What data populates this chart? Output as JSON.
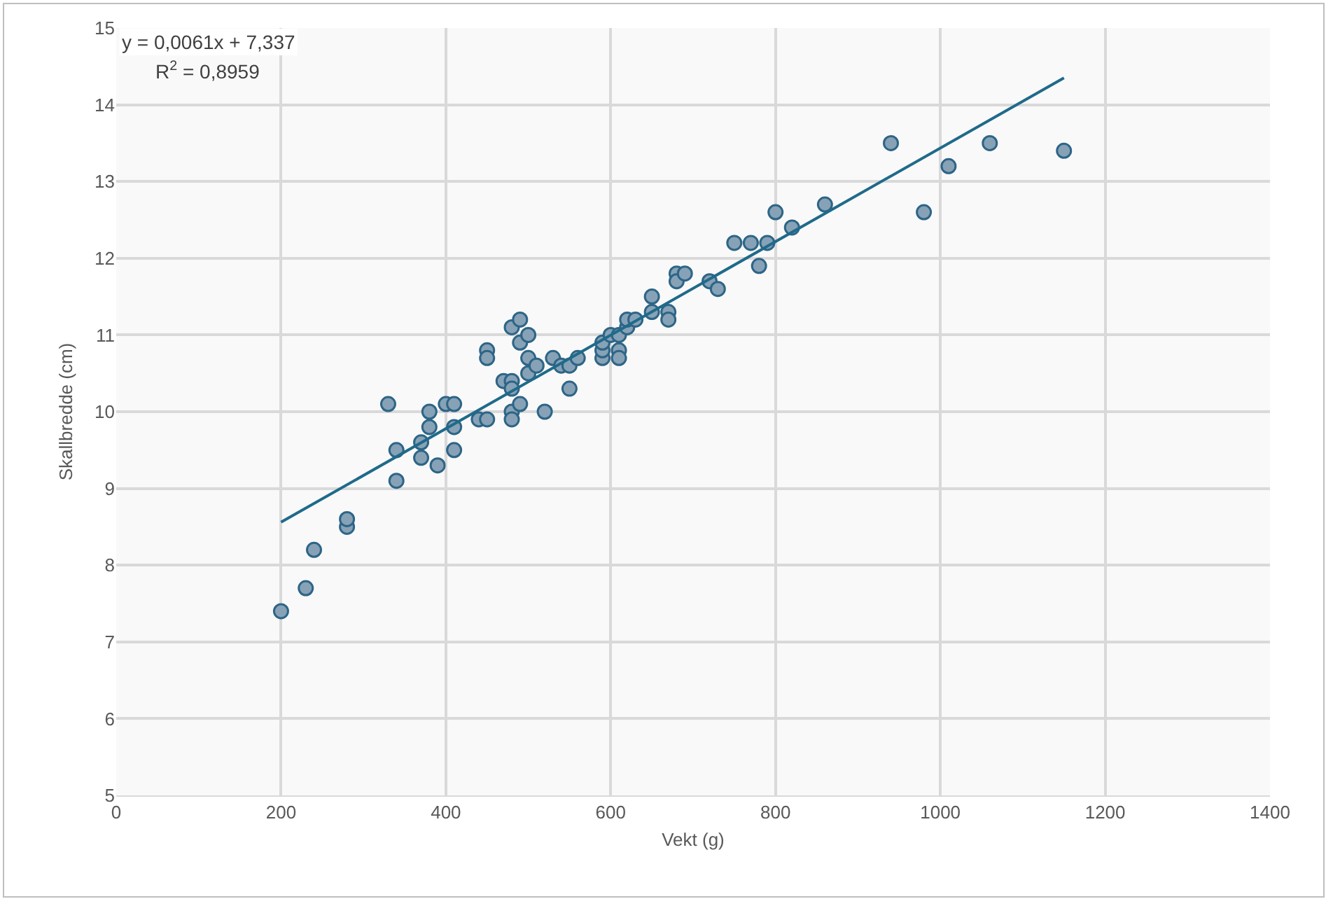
{
  "chart_data": {
    "type": "scatter",
    "xlabel": "Vekt (g)",
    "ylabel": "Skallbredde (cm)",
    "xlim": [
      0,
      1400
    ],
    "xticks": [
      0,
      200,
      400,
      600,
      800,
      1000,
      1200,
      1400
    ],
    "ylim": [
      5,
      15
    ],
    "yticks": [
      5,
      6,
      7,
      8,
      9,
      10,
      11,
      12,
      13,
      14,
      15
    ],
    "grid": true,
    "annotations": [
      "y = 0,0061x + 7,337",
      "R$^{2}$ = 0,8959"
    ],
    "series": [
      {
        "marker": "circle",
        "color": "#87a2b6",
        "x": [
          200,
          230,
          240,
          280,
          280,
          330,
          340,
          340,
          370,
          370,
          380,
          380,
          390,
          400,
          410,
          410,
          410,
          440,
          450,
          450,
          450,
          470,
          480,
          480,
          480,
          480,
          480,
          490,
          490,
          490,
          500,
          500,
          500,
          510,
          520,
          530,
          540,
          550,
          550,
          560,
          590,
          590,
          590,
          600,
          610,
          610,
          610,
          620,
          620,
          630,
          650,
          650,
          670,
          670,
          680,
          680,
          690,
          720,
          730,
          750,
          770,
          780,
          790,
          800,
          820,
          860,
          940,
          980,
          1010,
          1060,
          1150
        ],
        "values": [
          7.4,
          7.7,
          8.2,
          8.5,
          8.6,
          10.1,
          9.5,
          9.1,
          9.6,
          9.4,
          10.0,
          9.8,
          9.3,
          10.1,
          10.1,
          9.8,
          9.5,
          9.9,
          9.9,
          10.8,
          10.7,
          10.4,
          11.1,
          10.4,
          10.3,
          10.0,
          9.9,
          11.2,
          10.9,
          10.1,
          11.0,
          10.7,
          10.5,
          10.6,
          10.0,
          10.7,
          10.6,
          10.6,
          10.3,
          10.7,
          10.7,
          10.8,
          10.9,
          11.0,
          11.0,
          10.8,
          10.7,
          11.1,
          11.2,
          11.2,
          11.5,
          11.3,
          11.3,
          11.2,
          11.8,
          11.7,
          11.8,
          11.7,
          11.6,
          12.2,
          12.2,
          11.9,
          12.2,
          12.6,
          12.4,
          12.7,
          13.5,
          12.6,
          13.2,
          13.5,
          13.4
        ]
      },
      {
        "type": "line",
        "marker": "none",
        "color": "#1f6a8a",
        "line_style": "solid",
        "x": [
          200,
          1150
        ],
        "values": [
          8.56,
          14.35
        ]
      }
    ]
  }
}
